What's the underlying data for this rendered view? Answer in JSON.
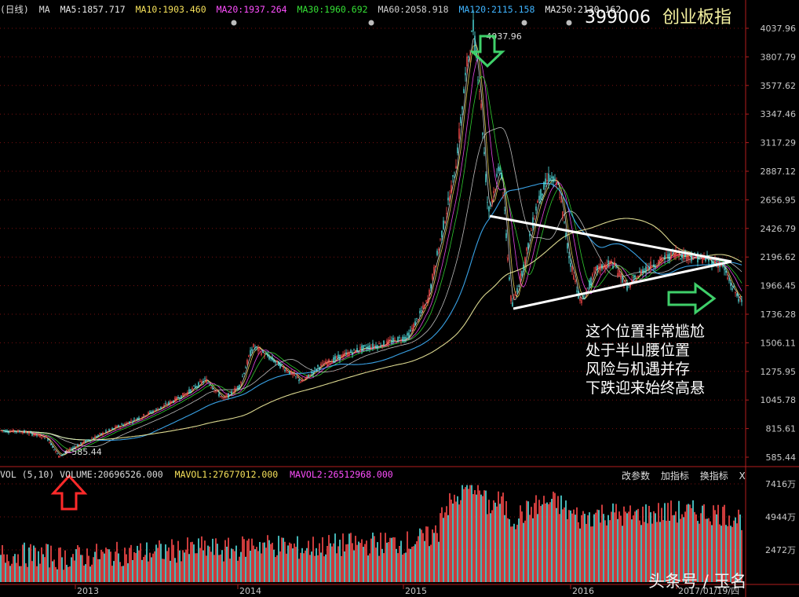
{
  "header": {
    "period": "(日线)",
    "ma_label": "MA",
    "ma_items": [
      {
        "label": "MA5:1857.717",
        "color": "#e8e8e8"
      },
      {
        "label": "MA10:1903.460",
        "color": "#f6e15a"
      },
      {
        "label": "MA20:1937.264",
        "color": "#ff4fff"
      },
      {
        "label": "MA30:1960.692",
        "color": "#35e135"
      },
      {
        "label": "MA60:2058.918",
        "color": "#d0d0d0"
      },
      {
        "label": "MA120:2115.158",
        "color": "#3fb4ff"
      },
      {
        "label": "MA250:2130.162",
        "color": "#e8e8e8"
      }
    ],
    "code": "399006",
    "name": "创业板指"
  },
  "colors": {
    "up": "#ff4b4b",
    "down": "#54e3e3",
    "ma250": "#f4f1a0",
    "ma120": "#3fb4ff",
    "grid": "#7a1010",
    "axis_text": "#c8c8c8",
    "arrow_green": "#3fd06a",
    "arrow_red": "#ff2a2a",
    "trend_line": "#ffffff"
  },
  "chart_data": {
    "type": "candlestick",
    "y_axis_ticks": [
      "4037.96",
      "3807.79",
      "3577.62",
      "3347.46",
      "3117.29",
      "2887.12",
      "2656.95",
      "2426.79",
      "2196.62",
      "1966.45",
      "1736.28",
      "1506.11",
      "1275.95",
      "1045.78",
      "815.61",
      "585.44"
    ],
    "x_axis_labels": [
      "2013",
      "2014",
      "2015",
      "2016",
      "2017/01/19/四"
    ],
    "ylim": [
      585.44,
      4037.96
    ],
    "price_path": [
      [
        0,
        800
      ],
      [
        30,
        790
      ],
      [
        60,
        740
      ],
      [
        75,
        590
      ],
      [
        95,
        670
      ],
      [
        120,
        745
      ],
      [
        150,
        830
      ],
      [
        180,
        910
      ],
      [
        210,
        1000
      ],
      [
        240,
        1110
      ],
      [
        262,
        1210
      ],
      [
        285,
        1050
      ],
      [
        305,
        1160
      ],
      [
        322,
        1480
      ],
      [
        345,
        1380
      ],
      [
        365,
        1290
      ],
      [
        385,
        1190
      ],
      [
        405,
        1310
      ],
      [
        430,
        1385
      ],
      [
        460,
        1460
      ],
      [
        490,
        1500
      ],
      [
        520,
        1560
      ],
      [
        545,
        1850
      ],
      [
        565,
        2450
      ],
      [
        580,
        2900
      ],
      [
        595,
        3750
      ],
      [
        603,
        4037.96
      ],
      [
        612,
        3500
      ],
      [
        622,
        2550
      ],
      [
        638,
        2950
      ],
      [
        652,
        1780
      ],
      [
        668,
        2150
      ],
      [
        685,
        2650
      ],
      [
        700,
        2850
      ],
      [
        712,
        2750
      ],
      [
        725,
        2200
      ],
      [
        740,
        1820
      ],
      [
        760,
        2100
      ],
      [
        780,
        2150
      ],
      [
        800,
        1950
      ],
      [
        820,
        2100
      ],
      [
        840,
        2160
      ],
      [
        860,
        2230
      ],
      [
        880,
        2200
      ],
      [
        900,
        2180
      ],
      [
        920,
        2130
      ],
      [
        932,
        1960
      ],
      [
        945,
        1830
      ]
    ],
    "annotations": {
      "high_label": "4037.96",
      "low_label": "585.44",
      "note_lines": [
        "这个位置非常尴尬",
        "处于半山腰位置",
        "风险与机遇并存",
        "下跌迎来始终高悬"
      ]
    },
    "volume": {
      "label": "VOL (5,10) VOLUME:20696526.000",
      "mavol1": "MAVOL1:27677012.000",
      "mavol2": "MAVOL2:26512968.000",
      "y_axis_ticks": [
        "7416万",
        "4944万",
        "2472万"
      ],
      "buttons": [
        "改参数",
        "加指标",
        "换指标",
        "X"
      ]
    }
  },
  "watermark": "头条号 / 玉名"
}
